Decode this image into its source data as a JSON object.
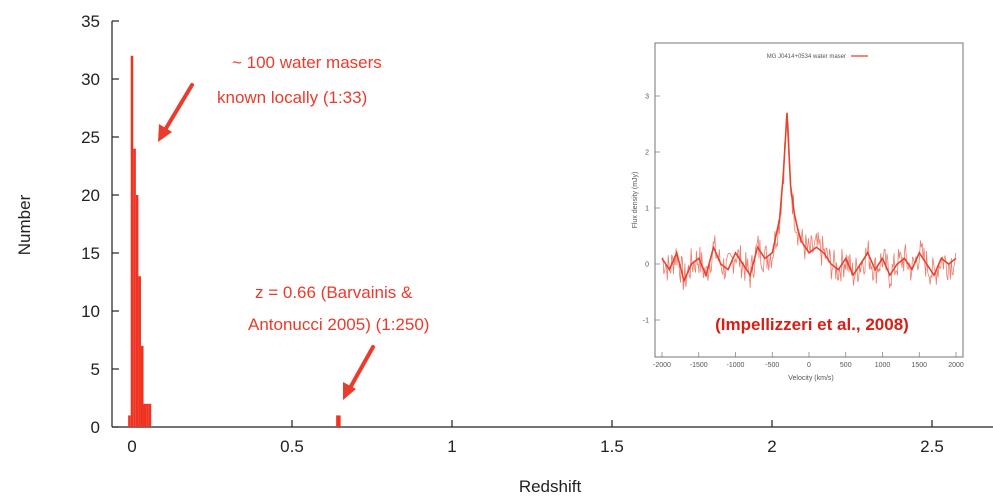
{
  "chart_data": [
    {
      "type": "bar",
      "title": "",
      "xlabel": "Redshift",
      "ylabel": "Number",
      "xlim": [
        -0.06,
        2.6
      ],
      "ylim": [
        0,
        35
      ],
      "x_ticks": [
        0,
        0.5,
        1,
        1.5,
        2,
        2.5
      ],
      "x_tick_labels": [
        "0",
        "0.5",
        "1",
        "1.5",
        "2",
        "2.5"
      ],
      "y_ticks": [
        0,
        5,
        10,
        15,
        20,
        25,
        30,
        35
      ],
      "y_tick_labels": [
        "0",
        "5",
        "10",
        "15",
        "20",
        "25",
        "30",
        "35"
      ],
      "grid": false,
      "bar_color": "#ee3322",
      "bins": [
        {
          "x0": -0.012,
          "x1": -0.004,
          "value": 1
        },
        {
          "x0": -0.004,
          "x1": 0.004,
          "value": 32
        },
        {
          "x0": 0.004,
          "x1": 0.012,
          "value": 24
        },
        {
          "x0": 0.012,
          "x1": 0.02,
          "value": 20
        },
        {
          "x0": 0.02,
          "x1": 0.028,
          "value": 13
        },
        {
          "x0": 0.028,
          "x1": 0.036,
          "value": 7
        },
        {
          "x0": 0.036,
          "x1": 0.044,
          "value": 2
        },
        {
          "x0": 0.044,
          "x1": 0.052,
          "value": 2
        },
        {
          "x0": 0.052,
          "x1": 0.06,
          "value": 2
        },
        {
          "x0": 0.638,
          "x1": 0.652,
          "value": 1
        }
      ],
      "annotations": [
        {
          "lines": [
            "~ 100 water masers",
            "known locally (1:33)"
          ],
          "style": "normal"
        },
        {
          "lines": [
            "z = 0.66 (Barvainis &",
            "Antonucci 2005) (1:250)"
          ],
          "style": "normal"
        }
      ]
    },
    {
      "type": "line",
      "title": "",
      "xlabel": "Velocity (km/s)",
      "ylabel": "Flux density (mJy)",
      "xlim": [
        -2000,
        2000
      ],
      "ylim": [
        -1.5,
        3.5
      ],
      "x_ticks": [
        -2000,
        -1500,
        -1000,
        -500,
        0,
        500,
        1000,
        1500,
        2000
      ],
      "x_tick_labels": [
        "-2000",
        "-1500",
        "-1000",
        "-500",
        "0",
        "500",
        "1000",
        "1500",
        "2000"
      ],
      "y_ticks": [
        -1,
        0,
        1,
        2,
        3
      ],
      "y_tick_labels": [
        "-1",
        "0",
        "1",
        "2",
        "3"
      ],
      "series": [
        {
          "name": "MG J0414+0534 water maser",
          "color": "#e4452f",
          "x": [
            -2000,
            -1900,
            -1800,
            -1700,
            -1600,
            -1500,
            -1400,
            -1300,
            -1200,
            -1100,
            -1000,
            -900,
            -800,
            -700,
            -600,
            -500,
            -450,
            -400,
            -350,
            -300,
            -250,
            -200,
            -150,
            -100,
            -50,
            0,
            100,
            200,
            300,
            400,
            500,
            600,
            700,
            800,
            900,
            1000,
            1100,
            1200,
            1300,
            1400,
            1500,
            1600,
            1700,
            1800,
            1900,
            2000
          ],
          "y": [
            0.1,
            -0.1,
            0.2,
            -0.3,
            0.0,
            0.1,
            -0.2,
            0.3,
            0.0,
            -0.1,
            0.2,
            0.0,
            -0.2,
            0.3,
            0.1,
            0.2,
            0.5,
            0.8,
            1.6,
            2.7,
            1.4,
            0.9,
            0.6,
            0.4,
            0.3,
            0.2,
            0.3,
            0.2,
            0.0,
            -0.1,
            0.1,
            -0.2,
            0.0,
            0.2,
            -0.1,
            0.1,
            -0.2,
            0.0,
            0.1,
            -0.1,
            0.2,
            0.0,
            -0.2,
            0.1,
            0.0,
            0.1
          ]
        }
      ],
      "legend": "top-center",
      "annotation": "(Impellizzeri et al., 2008)"
    }
  ]
}
